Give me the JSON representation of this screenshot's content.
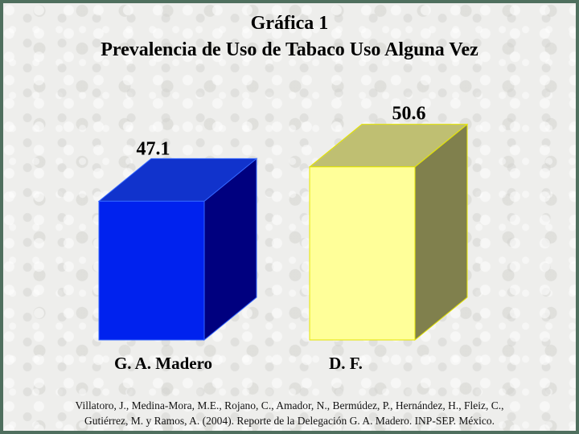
{
  "title_lines": [
    "Gráfica 1",
    "Prevalencia de Uso de Tabaco Uso Alguna Vez"
  ],
  "source": {
    "line1": "Villatoro, J., Medina-Mora, M.E., Rojano, C., Amador, N., Bermúdez, P., Hernández, H., Fleiz, C.,",
    "line2": "Gutiérrez, M. y Ramos, A. (2004). Reporte de la Delegación G. A. Madero. INP-SEP. México."
  },
  "chart_data": {
    "type": "bar",
    "style": "3d-box",
    "categories": [
      "G. A. Madero",
      "D. F."
    ],
    "values": [
      47.1,
      50.6
    ],
    "value_labels": [
      "47.1",
      "50.6"
    ],
    "colors": {
      "front": [
        "#0022ee",
        "#ffff99"
      ],
      "top": [
        "#1133cc",
        "#bfbf72"
      ],
      "side": [
        "#00007f",
        "#80804d"
      ],
      "edge": [
        "#3366ff",
        "#e6e600"
      ]
    },
    "title": "Prevalencia de Uso de Tabaco Uso Alguna Vez",
    "xlabel": "",
    "ylabel": "",
    "grid": false,
    "legend": "none"
  }
}
